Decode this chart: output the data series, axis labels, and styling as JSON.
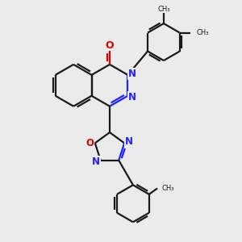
{
  "bg_color": "#ebebeb",
  "bond_color": "#1a1a1a",
  "nitrogen_color": "#2222ff",
  "oxygen_color": "#dd0000",
  "line_width": 1.6,
  "figsize": [
    3.0,
    3.0
  ],
  "dpi": 100,
  "xlim": [
    0,
    10
  ],
  "ylim": [
    0,
    10
  ]
}
